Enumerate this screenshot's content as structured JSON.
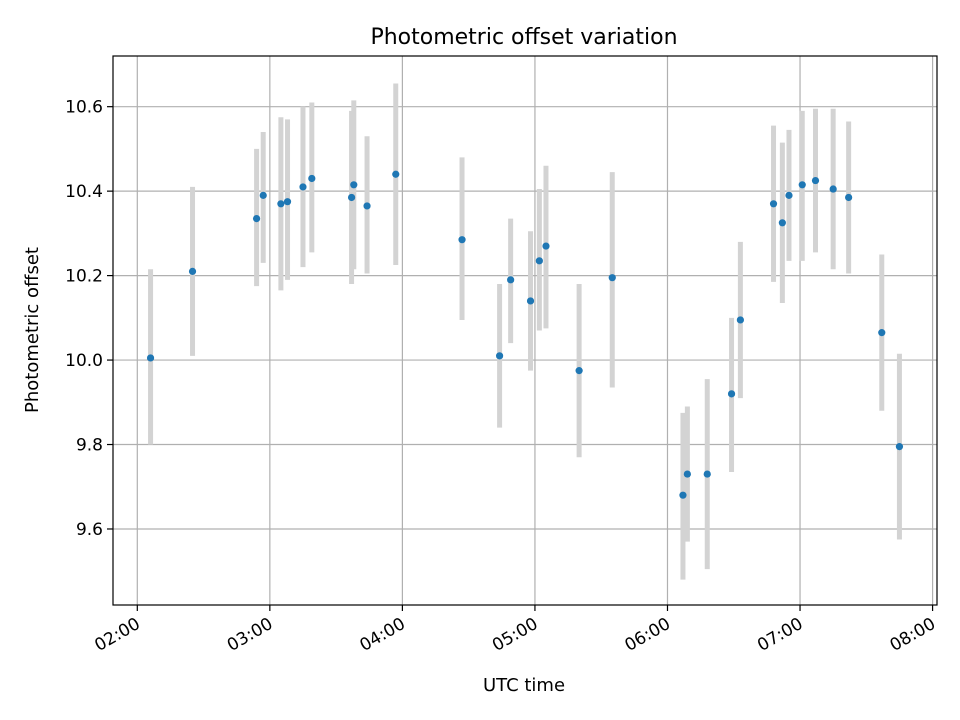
{
  "chart_data": {
    "type": "scatter",
    "title": "Photometric offset variation",
    "xlabel": "UTC time",
    "ylabel": "Photometric offset",
    "xlim": [
      "01:49",
      "08:02"
    ],
    "ylim": [
      9.42,
      10.72
    ],
    "x_ticks": [
      "02:00",
      "03:00",
      "04:00",
      "05:00",
      "06:00",
      "07:00",
      "08:00"
    ],
    "y_ticks": [
      9.6,
      9.8,
      10.0,
      10.2,
      10.4,
      10.6
    ],
    "y_tick_labels": [
      "9.6",
      "9.8",
      "10.0",
      "10.2",
      "10.4",
      "10.6"
    ],
    "grid": true,
    "marker_color": "#1f77b4",
    "errorbar_color": "#d3d3d3",
    "series": [
      {
        "points": [
          {
            "x": "02:06",
            "y": 10.005,
            "err_low": 9.8,
            "err_high": 10.215
          },
          {
            "x": "02:25",
            "y": 10.21,
            "err_low": 10.01,
            "err_high": 10.41
          },
          {
            "x": "02:54",
            "y": 10.335,
            "err_low": 10.175,
            "err_high": 10.5
          },
          {
            "x": "02:57",
            "y": 10.39,
            "err_low": 10.23,
            "err_high": 10.54
          },
          {
            "x": "03:05",
            "y": 10.37,
            "err_low": 10.165,
            "err_high": 10.575
          },
          {
            "x": "03:08",
            "y": 10.375,
            "err_low": 10.19,
            "err_high": 10.57
          },
          {
            "x": "03:15",
            "y": 10.41,
            "err_low": 10.22,
            "err_high": 10.6
          },
          {
            "x": "03:19",
            "y": 10.43,
            "err_low": 10.255,
            "err_high": 10.61
          },
          {
            "x": "03:37",
            "y": 10.385,
            "err_low": 10.18,
            "err_high": 10.59
          },
          {
            "x": "03:38",
            "y": 10.415,
            "err_low": 10.215,
            "err_high": 10.615
          },
          {
            "x": "03:44",
            "y": 10.365,
            "err_low": 10.205,
            "err_high": 10.53
          },
          {
            "x": "03:57",
            "y": 10.44,
            "err_low": 10.225,
            "err_high": 10.655
          },
          {
            "x": "04:27",
            "y": 10.285,
            "err_low": 10.095,
            "err_high": 10.48
          },
          {
            "x": "04:44",
            "y": 10.01,
            "err_low": 9.84,
            "err_high": 10.18
          },
          {
            "x": "04:49",
            "y": 10.19,
            "err_low": 10.04,
            "err_high": 10.335
          },
          {
            "x": "04:58",
            "y": 10.14,
            "err_low": 9.975,
            "err_high": 10.305
          },
          {
            "x": "05:02",
            "y": 10.235,
            "err_low": 10.07,
            "err_high": 10.405
          },
          {
            "x": "05:05",
            "y": 10.27,
            "err_low": 10.075,
            "err_high": 10.46
          },
          {
            "x": "05:20",
            "y": 9.975,
            "err_low": 9.77,
            "err_high": 10.18
          },
          {
            "x": "05:35",
            "y": 10.195,
            "err_low": 9.935,
            "err_high": 10.445
          },
          {
            "x": "06:07",
            "y": 9.68,
            "err_low": 9.48,
            "err_high": 9.875
          },
          {
            "x": "06:09",
            "y": 9.73,
            "err_low": 9.57,
            "err_high": 9.89
          },
          {
            "x": "06:18",
            "y": 9.73,
            "err_low": 9.505,
            "err_high": 9.955
          },
          {
            "x": "06:29",
            "y": 9.92,
            "err_low": 9.735,
            "err_high": 10.1
          },
          {
            "x": "06:33",
            "y": 10.095,
            "err_low": 9.91,
            "err_high": 10.28
          },
          {
            "x": "06:48",
            "y": 10.37,
            "err_low": 10.185,
            "err_high": 10.555
          },
          {
            "x": "06:52",
            "y": 10.325,
            "err_low": 10.135,
            "err_high": 10.515
          },
          {
            "x": "06:55",
            "y": 10.39,
            "err_low": 10.235,
            "err_high": 10.545
          },
          {
            "x": "07:01",
            "y": 10.415,
            "err_low": 10.235,
            "err_high": 10.59
          },
          {
            "x": "07:07",
            "y": 10.425,
            "err_low": 10.255,
            "err_high": 10.595
          },
          {
            "x": "07:15",
            "y": 10.405,
            "err_low": 10.215,
            "err_high": 10.595
          },
          {
            "x": "07:22",
            "y": 10.385,
            "err_low": 10.205,
            "err_high": 10.565
          },
          {
            "x": "07:37",
            "y": 10.065,
            "err_low": 9.88,
            "err_high": 10.25
          },
          {
            "x": "07:45",
            "y": 9.795,
            "err_low": 9.575,
            "err_high": 10.015
          }
        ]
      }
    ]
  }
}
